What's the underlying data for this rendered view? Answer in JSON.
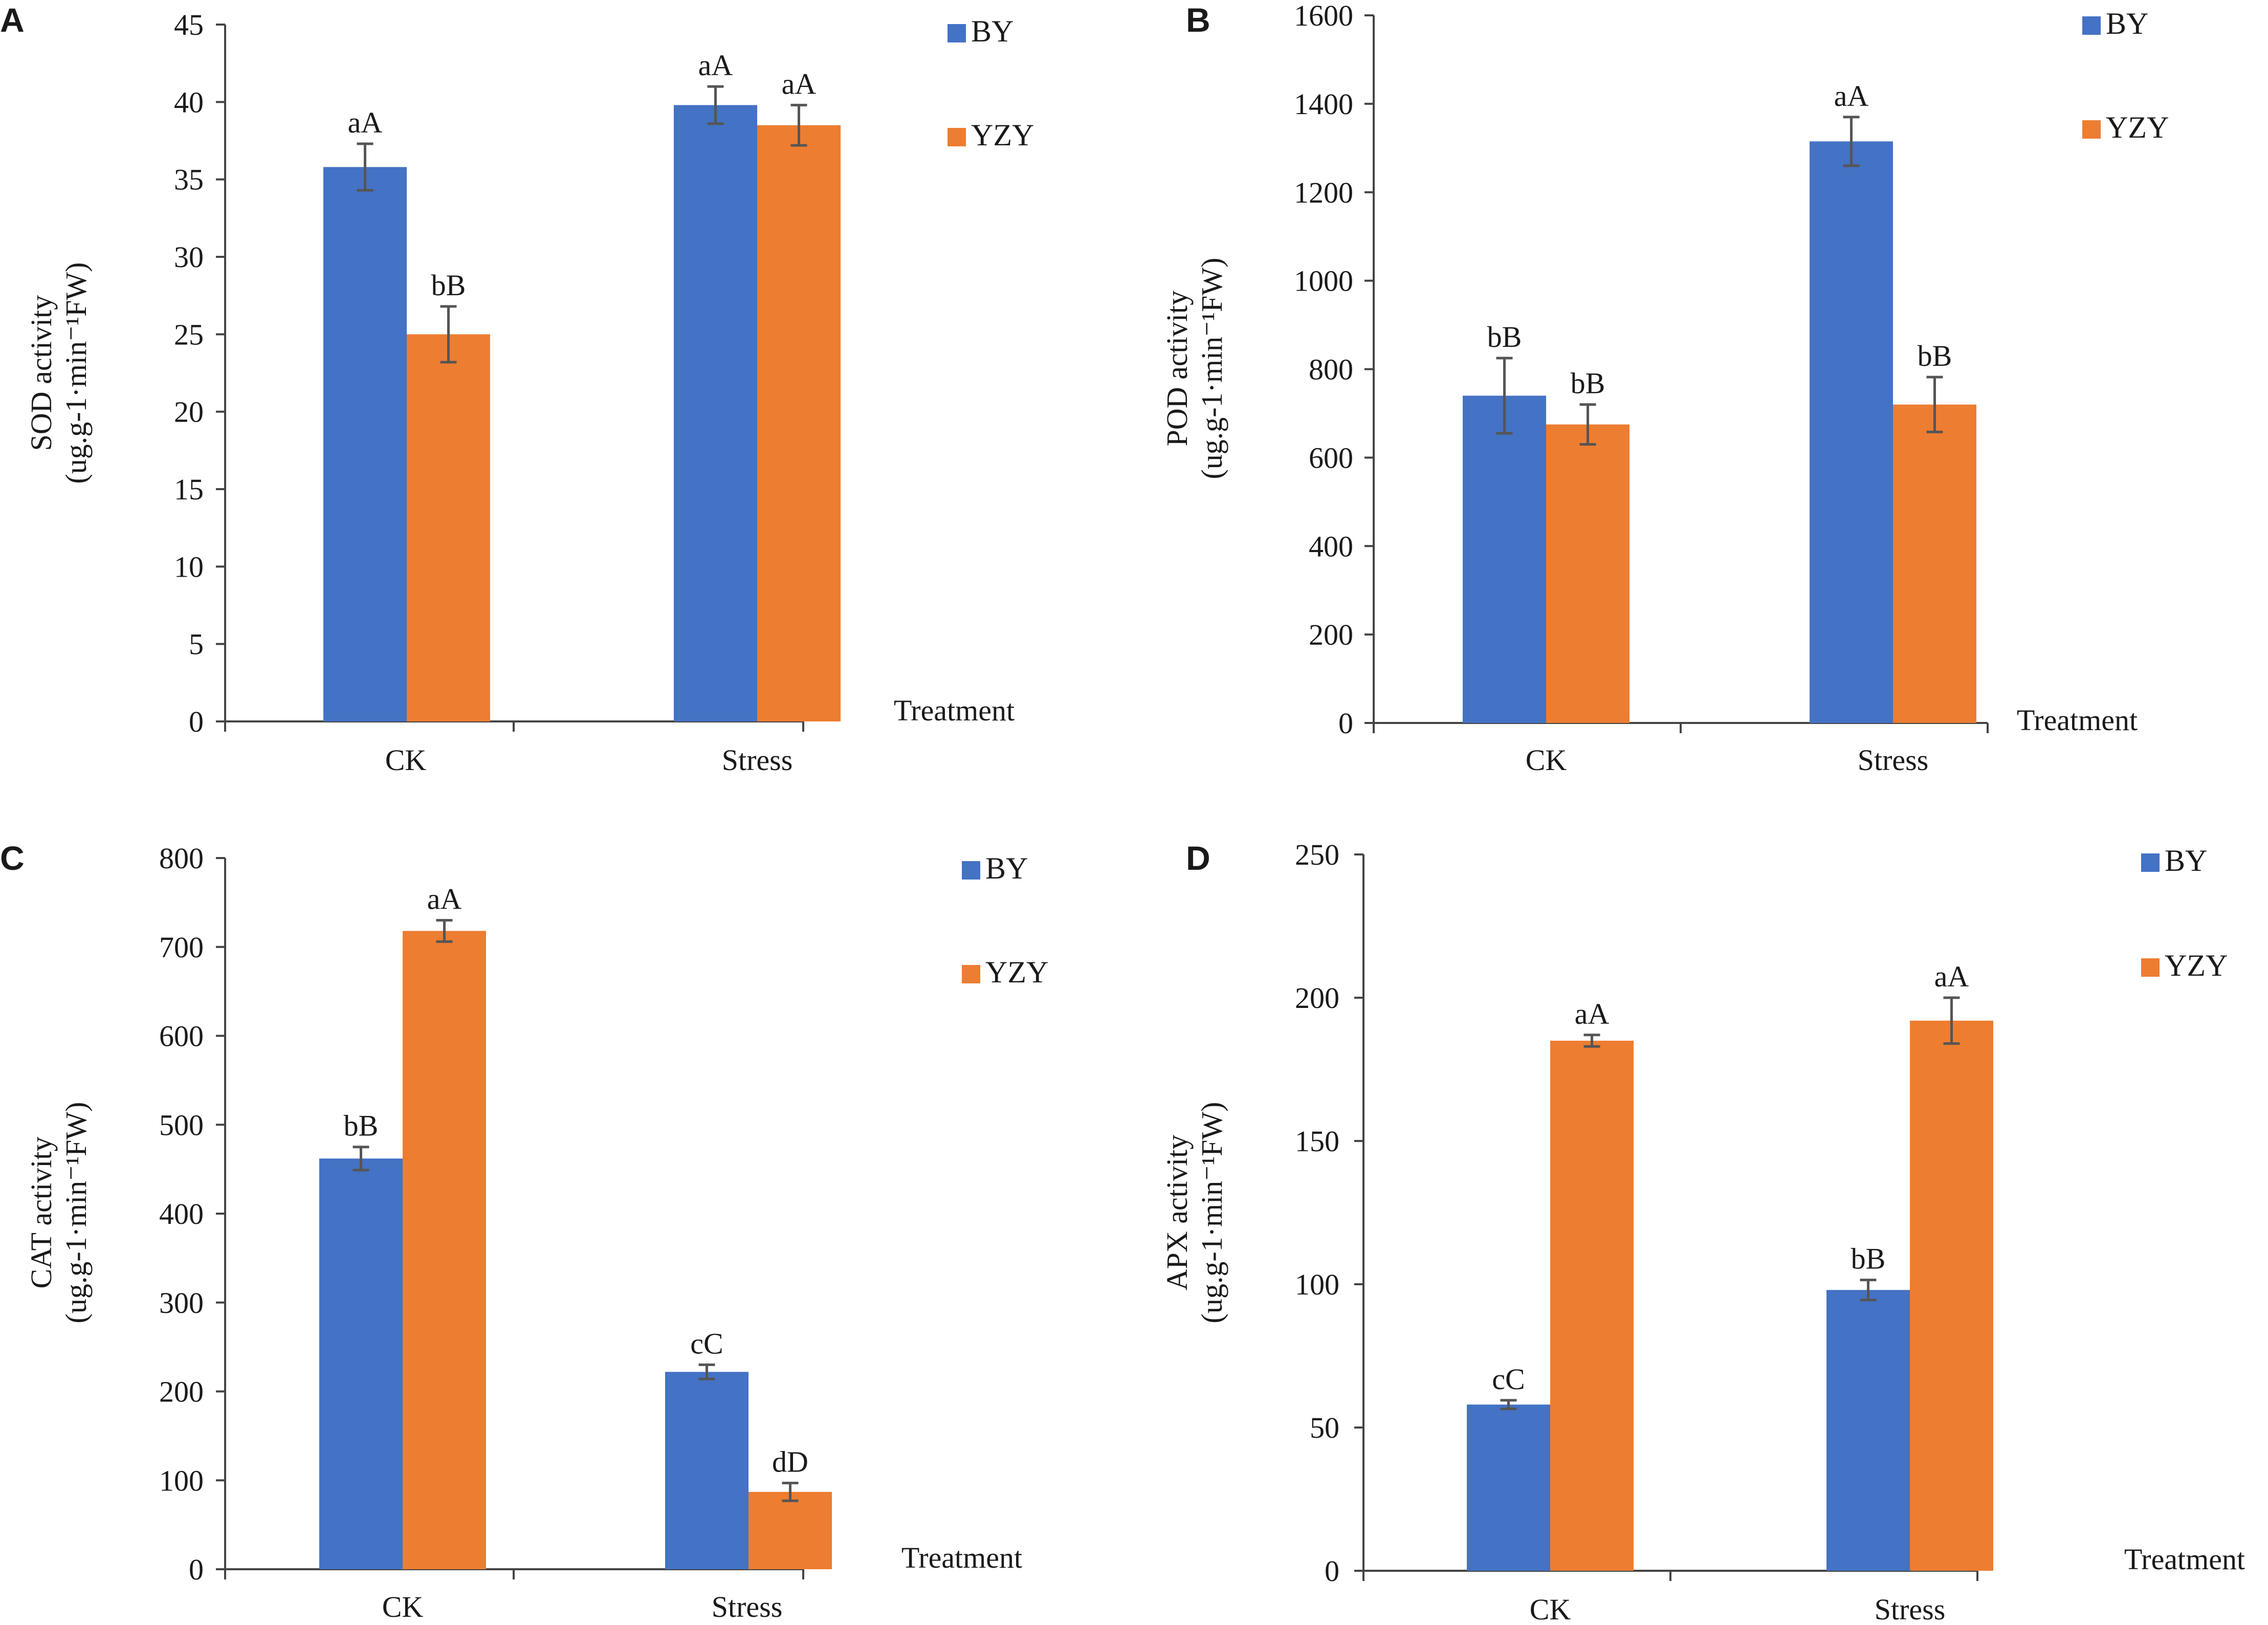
{
  "figure": {
    "colors": {
      "BY": "#4472c4",
      "YZY": "#ed7d31",
      "axis": "#444444",
      "error": "#555555"
    }
  },
  "chart_data": [
    {
      "type": "bar",
      "panel": "A",
      "categories": [
        "CK",
        "Stress"
      ],
      "series": [
        {
          "name": "BY",
          "values": [
            35.8,
            39.8
          ],
          "errors": [
            1.5,
            1.2
          ],
          "labels": [
            "aA",
            "aA"
          ]
        },
        {
          "name": "YZY",
          "values": [
            25.0,
            38.5
          ],
          "errors": [
            1.8,
            1.3
          ],
          "labels": [
            "bB",
            "aA"
          ]
        }
      ],
      "ylabel_line1": "SOD activity",
      "ylabel_line2": "(ug.g-1·min⁻¹FW)",
      "xlabel": "Treatment",
      "ylim": [
        0,
        45
      ],
      "yticks": [
        0,
        5,
        10,
        15,
        20,
        25,
        30,
        35,
        40,
        45
      ],
      "legend": "top-right"
    },
    {
      "type": "bar",
      "panel": "B",
      "categories": [
        "CK",
        "Stress"
      ],
      "series": [
        {
          "name": "BY",
          "values": [
            740,
            1315
          ],
          "errors": [
            85,
            55
          ],
          "labels": [
            "bB",
            "aA"
          ]
        },
        {
          "name": "YZY",
          "values": [
            675,
            720
          ],
          "errors": [
            45,
            62
          ],
          "labels": [
            "bB",
            "bB"
          ]
        }
      ],
      "ylabel_line1": "POD activity",
      "ylabel_line2": "(ug.g-1·min⁻¹FW)",
      "xlabel": "Treatment",
      "ylim": [
        0,
        1600
      ],
      "yticks": [
        0,
        200,
        400,
        600,
        800,
        1000,
        1200,
        1400,
        1600
      ],
      "legend": "top-right"
    },
    {
      "type": "bar",
      "panel": "C",
      "categories": [
        "CK",
        "Stress"
      ],
      "series": [
        {
          "name": "BY",
          "values": [
            462,
            222
          ],
          "errors": [
            13,
            8
          ],
          "labels": [
            "bB",
            "cC"
          ]
        },
        {
          "name": "YZY",
          "values": [
            718,
            87
          ],
          "errors": [
            12,
            10
          ],
          "labels": [
            "aA",
            "dD"
          ]
        }
      ],
      "ylabel_line1": "CAT activity",
      "ylabel_line2": "(ug.g-1·min⁻¹FW)",
      "xlabel": "Treatment",
      "ylim": [
        0,
        800
      ],
      "yticks": [
        0,
        100,
        200,
        300,
        400,
        500,
        600,
        700,
        800
      ],
      "legend": "top-right"
    },
    {
      "type": "bar",
      "panel": "D",
      "categories": [
        "CK",
        "Stress"
      ],
      "series": [
        {
          "name": "BY",
          "values": [
            58,
            98
          ],
          "errors": [
            1.5,
            3.5
          ],
          "labels": [
            "cC",
            "bB"
          ]
        },
        {
          "name": "YZY",
          "values": [
            185,
            192
          ],
          "errors": [
            2,
            8
          ],
          "labels": [
            "aA",
            "aA"
          ]
        }
      ],
      "ylabel_line1": "APX activity",
      "ylabel_line2": "(ug.g-1·min⁻¹FW)",
      "xlabel": "Treatment",
      "ylim": [
        0,
        250
      ],
      "yticks": [
        0,
        50,
        100,
        150,
        200,
        250
      ],
      "legend": "top-right"
    }
  ]
}
